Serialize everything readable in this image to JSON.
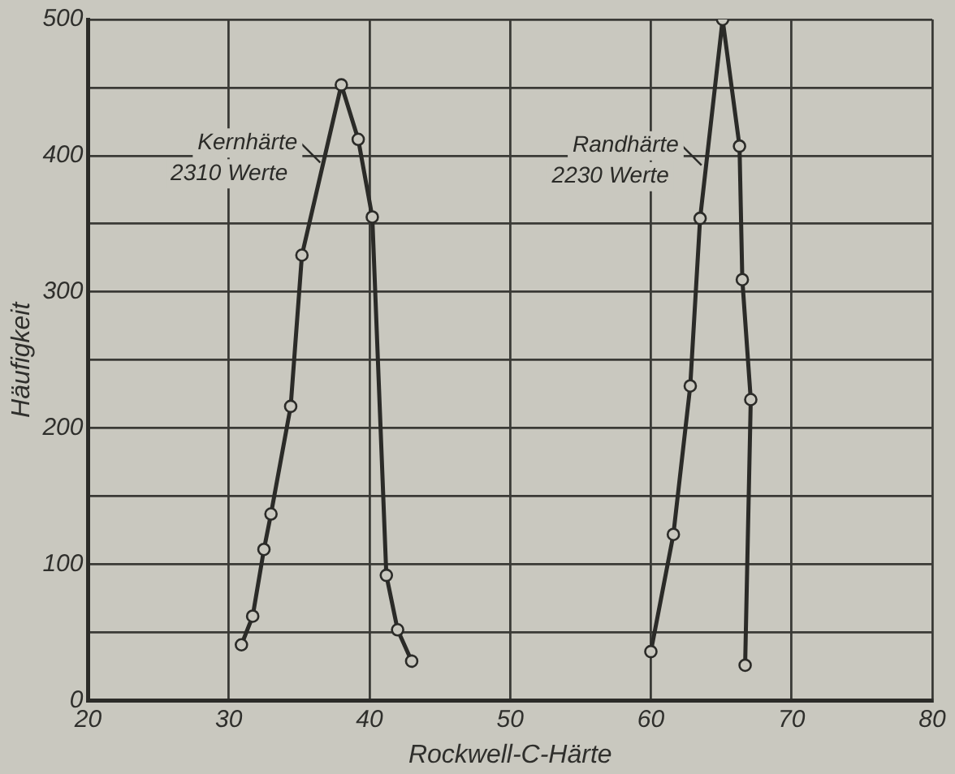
{
  "chart_data": {
    "type": "line",
    "xlabel": "Rockwell-C-Härte",
    "ylabel": "Häufigkeit",
    "xlim": [
      20,
      80
    ],
    "xticks": [
      20,
      30,
      40,
      50,
      60,
      70,
      80
    ],
    "ylim": [
      0,
      500
    ],
    "yticks": [
      0,
      {
        "value": 50,
        "label": null
      },
      100,
      {
        "value": 150,
        "label": null
      },
      200,
      {
        "value": 250,
        "label": null
      },
      300,
      {
        "value": 350,
        "label": null
      },
      400,
      {
        "value": 450,
        "label": null
      },
      500
    ],
    "grid": true,
    "legend": false,
    "marker": "circle",
    "line_style": "solid",
    "series": [
      {
        "color": "#2b2b28",
        "x": [
          30.9,
          31.7,
          32.5,
          33.0,
          34.4,
          35.2,
          38.0,
          39.2,
          40.2,
          41.2,
          42.0,
          43.0
        ],
        "values": [
          41,
          62,
          111,
          137,
          216,
          327,
          452,
          412,
          355,
          92,
          52,
          29
        ]
      },
      {
        "color": "#2b2b28",
        "x": [
          60.0,
          61.6,
          62.8,
          63.5,
          65.1,
          66.3,
          66.5,
          67.1,
          66.7
        ],
        "values": [
          36,
          122,
          231,
          354,
          500,
          407,
          309,
          221,
          26
        ]
      }
    ],
    "annotations": [
      {
        "text": "Kernhärte 2310 Werte",
        "x": 36.5,
        "y": 395
      },
      {
        "text": "Randhärte 2230 Werte",
        "x": 63.6,
        "y": 393
      }
    ]
  }
}
